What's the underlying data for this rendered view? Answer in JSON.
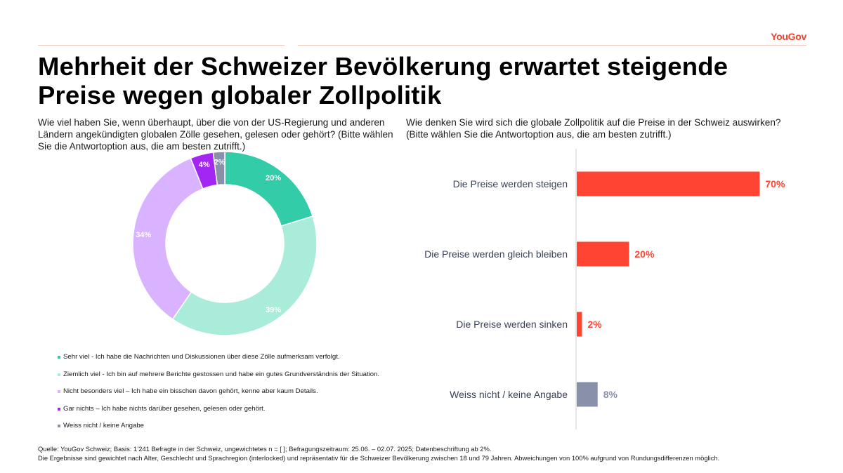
{
  "brand": "YouGov",
  "title": "Mehrheit der Schweizer Bevölkerung erwartet steigende Preise wegen globaler Zollpolitik",
  "left_question": "Wie viel haben Sie, wenn überhaupt, über die von der US-Regierung und anderen Ländern angekündigten globalen Zölle gesehen, gelesen oder gehört? (Bitte wählen Sie die Antwortoption aus, die am besten zutrifft.)",
  "right_question": "Wie denken Sie wird sich die globale Zollpolitik auf die Preise in der Schweiz auswirken? (Bitte wählen Sie die Antwortoption aus, die am besten zutrifft.)",
  "footer": {
    "line1": "Quelle: YouGov Schweiz; Basis: 1’241 Befragte in der Schweiz, ungewichtetes n = [ ]; Befragungszeitraum: 25.06. – 02.07. 2025; Datenbeschriftung ab 2%.",
    "line2": "Die Ergebnisse sind gewichtet nach Alter, Geschlecht und Sprachregion (interlocked) und repräsentativ für die Schweizer Bevölkerung zwischen 18 und 79 Jahren. Abweichungen von 100% aufgrund von Rundungsdifferenzen möglich."
  },
  "chart_data": [
    {
      "type": "pie",
      "donut": true,
      "categories": [
        "Sehr viel - Ich habe die Nachrichten und Diskussionen über diese Zölle aufmerksam verfolgt.",
        "Ziemlich viel - Ich bin auf mehrere Berichte gestossen und habe ein gutes Grundverständnis der Situation.",
        "Nicht besonders viel – Ich habe ein bisschen davon gehört, kenne aber kaum Details.",
        "Gar nichts – Ich habe nichts darüber gesehen, gelesen oder gehört.",
        "Weiss nicht / keine Angabe"
      ],
      "values": [
        20,
        39,
        34,
        4,
        2
      ],
      "labels": [
        "20%",
        "39%",
        "34%",
        "4%",
        "2%"
      ],
      "colors": [
        "#33cca8",
        "#a8ecd9",
        "#d9b3ff",
        "#a326f2",
        "#8891a9"
      ],
      "legend_position": "bottom"
    },
    {
      "type": "bar",
      "orientation": "horizontal",
      "categories": [
        "Die Preise werden steigen",
        "Die Preise werden gleich bleiben",
        "Die Preise werden sinken",
        "Weiss nicht / keine Angabe"
      ],
      "values": [
        70,
        20,
        2,
        8
      ],
      "labels": [
        "70%",
        "20%",
        "2%",
        "8%"
      ],
      "colors": [
        "#ff4433",
        "#ff4433",
        "#ff4433",
        "#8891a9"
      ],
      "xlim": [
        0,
        100
      ]
    }
  ]
}
